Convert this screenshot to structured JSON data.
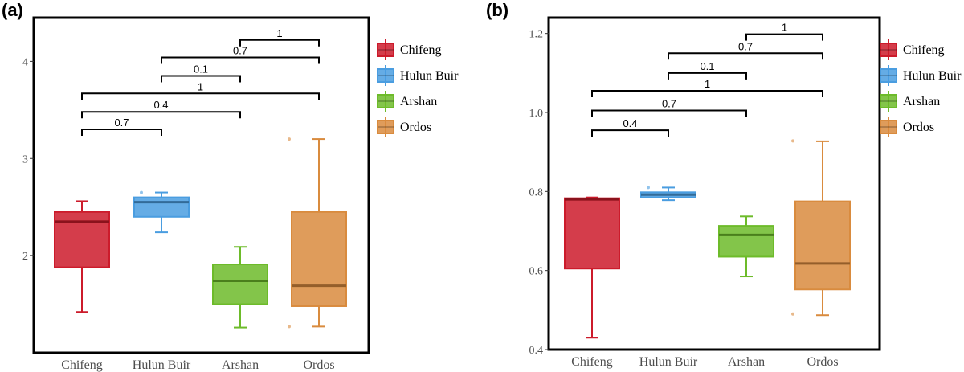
{
  "panels": [
    {
      "tag": "(a)"
    },
    {
      "tag": "(b)"
    }
  ],
  "chart_data": [
    {
      "type": "box",
      "panel": "(a)",
      "title": "",
      "xlabel": "",
      "ylabel": "",
      "ylim": [
        1.0,
        4.45
      ],
      "yticks": [
        2,
        3,
        4
      ],
      "categories": [
        "Chifeng",
        "Hulun Buir",
        "Arshan",
        "Ordos"
      ],
      "colors": [
        "#cc1b2b",
        "#4a9de0",
        "#6dbb2a",
        "#d98b3e"
      ],
      "boxes": [
        {
          "whisker_low": 1.42,
          "q1": 1.88,
          "median": 2.35,
          "q3": 2.45,
          "whisker_high": 2.56,
          "outliers": []
        },
        {
          "whisker_low": 2.24,
          "q1": 2.4,
          "median": 2.55,
          "q3": 2.6,
          "whisker_high": 2.65,
          "outliers": [
            2.65
          ]
        },
        {
          "whisker_low": 1.26,
          "q1": 1.5,
          "median": 1.74,
          "q3": 1.91,
          "whisker_high": 2.09,
          "outliers": []
        },
        {
          "whisker_low": 1.27,
          "q1": 1.48,
          "median": 1.69,
          "q3": 2.45,
          "whisker_high": 3.2,
          "outliers": [
            1.27,
            3.2
          ]
        }
      ],
      "brackets": [
        {
          "from": 0,
          "to": 1,
          "y": 3.3,
          "label": "0.7"
        },
        {
          "from": 0,
          "to": 2,
          "y": 3.48,
          "label": "0.4"
        },
        {
          "from": 0,
          "to": 3,
          "y": 3.67,
          "label": "1"
        },
        {
          "from": 1,
          "to": 2,
          "y": 3.85,
          "label": "0.1"
        },
        {
          "from": 1,
          "to": 3,
          "y": 4.04,
          "label": "0.7"
        },
        {
          "from": 2,
          "to": 3,
          "y": 4.22,
          "label": "1"
        }
      ],
      "legend": {
        "position": "right",
        "entries": [
          "Chifeng",
          "Hulun Buir",
          "Arshan",
          "Ordos"
        ]
      },
      "grid": false
    },
    {
      "type": "box",
      "panel": "(b)",
      "title": "",
      "xlabel": "",
      "ylabel": "",
      "ylim": [
        0.4,
        1.24
      ],
      "yticks": [
        0.4,
        0.6,
        0.8,
        1.0,
        1.2
      ],
      "categories": [
        "Chifeng",
        "Hulun Buir",
        "Arshan",
        "Ordos"
      ],
      "colors": [
        "#cc1b2b",
        "#4a9de0",
        "#6dbb2a",
        "#d98b3e"
      ],
      "boxes": [
        {
          "whisker_low": 0.43,
          "q1": 0.605,
          "median": 0.78,
          "q3": 0.783,
          "whisker_high": 0.785,
          "outliers": []
        },
        {
          "whisker_low": 0.778,
          "q1": 0.785,
          "median": 0.792,
          "q3": 0.798,
          "whisker_high": 0.81,
          "outliers": [
            0.81
          ]
        },
        {
          "whisker_low": 0.585,
          "q1": 0.635,
          "median": 0.69,
          "q3": 0.713,
          "whisker_high": 0.737,
          "outliers": []
        },
        {
          "whisker_low": 0.487,
          "q1": 0.552,
          "median": 0.618,
          "q3": 0.775,
          "whisker_high": 0.927,
          "outliers": [
            0.49,
            0.928
          ]
        }
      ],
      "brackets": [
        {
          "from": 0,
          "to": 1,
          "y": 0.955,
          "label": "0.4"
        },
        {
          "from": 0,
          "to": 2,
          "y": 1.005,
          "label": "0.7"
        },
        {
          "from": 0,
          "to": 3,
          "y": 1.055,
          "label": "1"
        },
        {
          "from": 1,
          "to": 2,
          "y": 1.1,
          "label": "0.1"
        },
        {
          "from": 1,
          "to": 3,
          "y": 1.15,
          "label": "0.7"
        },
        {
          "from": 2,
          "to": 3,
          "y": 1.198,
          "label": "1"
        }
      ],
      "legend": {
        "position": "right",
        "entries": [
          "Chifeng",
          "Hulun Buir",
          "Arshan",
          "Ordos"
        ]
      },
      "grid": false
    }
  ]
}
